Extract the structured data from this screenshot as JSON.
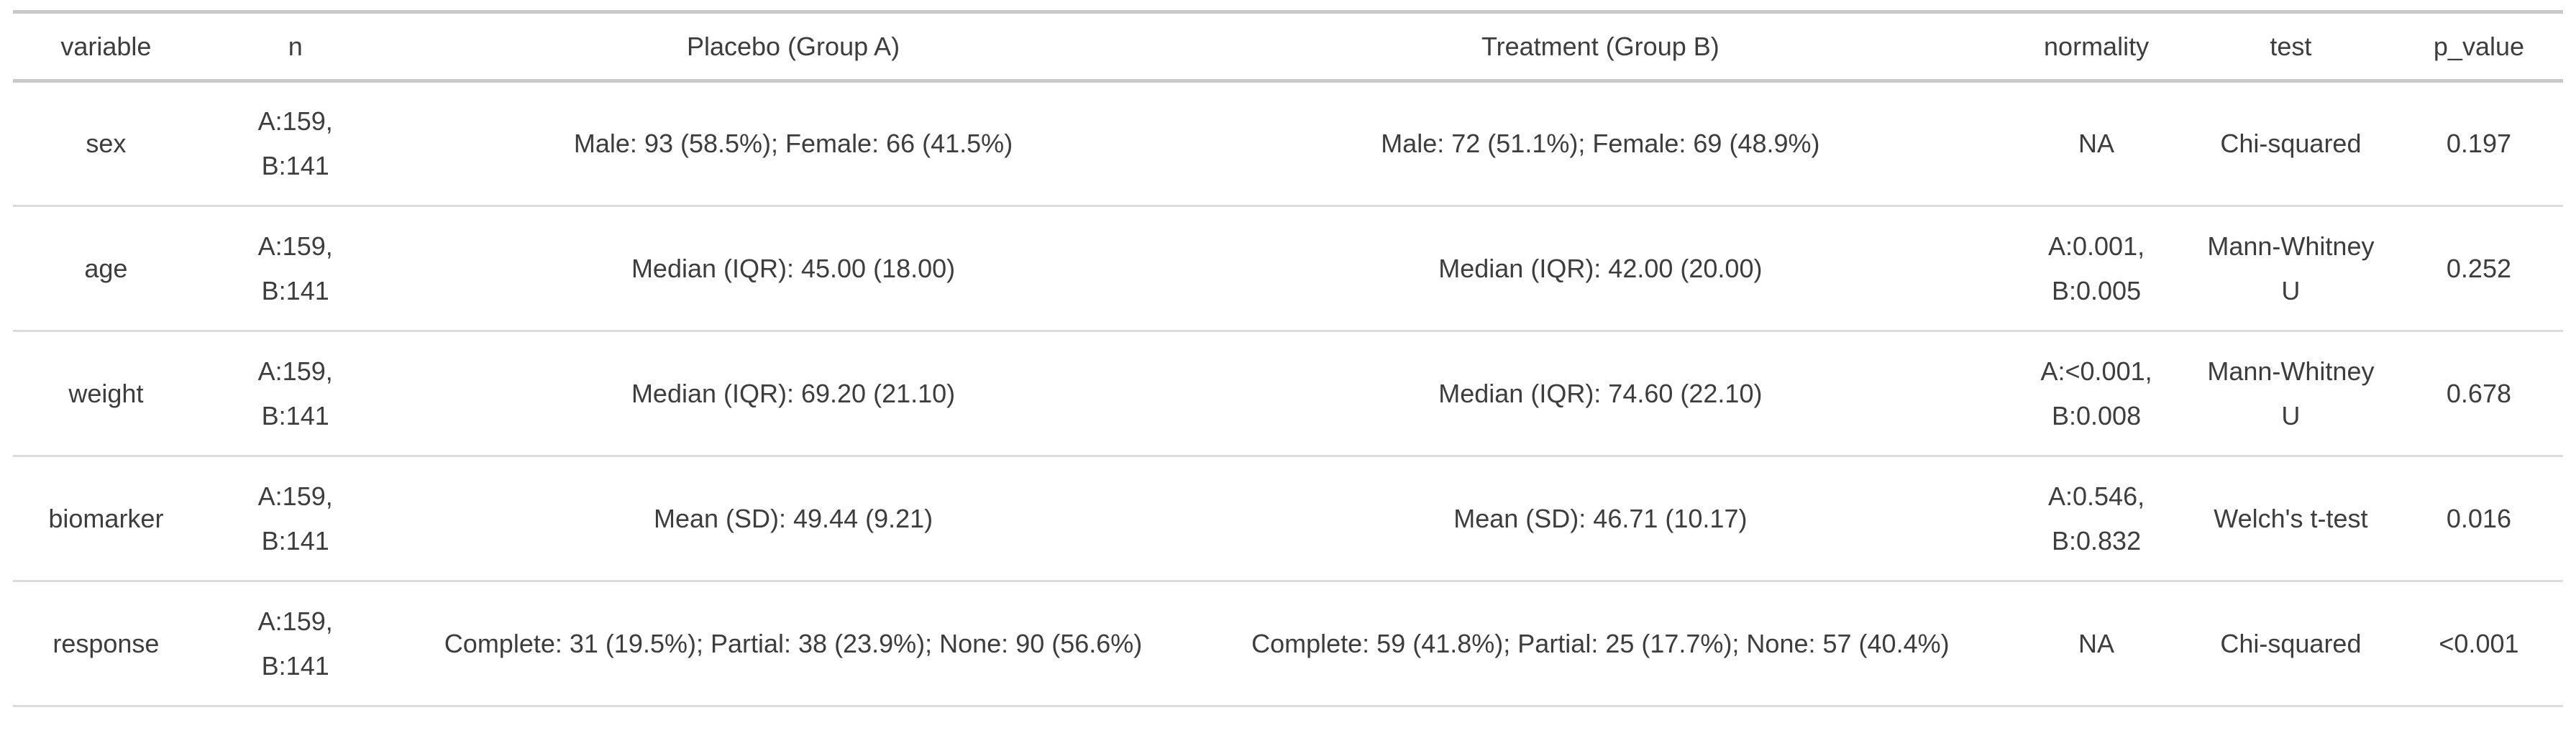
{
  "colors": {
    "background": "#ffffff",
    "text": "#3d3d3d",
    "rule_strong": "#c9c9c9",
    "rule_light": "#dcdcdc"
  },
  "chart_data": {
    "type": "table",
    "columns": [
      "variable",
      "n",
      "Placebo (Group A)",
      "Treatment (Group B)",
      "normality",
      "test",
      "p_value"
    ],
    "rows": [
      [
        "sex",
        "A:159, B:141",
        "Male: 93 (58.5%); Female: 66 (41.5%)",
        "Male: 72 (51.1%); Female: 69 (48.9%)",
        "NA",
        "Chi-squared",
        "0.197"
      ],
      [
        "age",
        "A:159, B:141",
        "Median (IQR): 45.00 (18.00)",
        "Median (IQR): 42.00 (20.00)",
        "A:0.001, B:0.005",
        "Mann-Whitney U",
        "0.252"
      ],
      [
        "weight",
        "A:159, B:141",
        "Median (IQR): 69.20 (21.10)",
        "Median (IQR): 74.60 (22.10)",
        "A:<0.001, B:0.008",
        "Mann-Whitney U",
        "0.678"
      ],
      [
        "biomarker",
        "A:159, B:141",
        "Mean (SD): 49.44 (9.21)",
        "Mean (SD): 46.71 (10.17)",
        "A:0.546, B:0.832",
        "Welch's t-test",
        "0.016"
      ],
      [
        "response",
        "A:159, B:141",
        "Complete: 31 (19.5%); Partial: 38 (23.9%); None: 90 (56.6%)",
        "Complete: 59 (41.8%); Partial: 25 (17.7%); None: 57 (40.4%)",
        "NA",
        "Chi-squared",
        "<0.001"
      ]
    ]
  }
}
